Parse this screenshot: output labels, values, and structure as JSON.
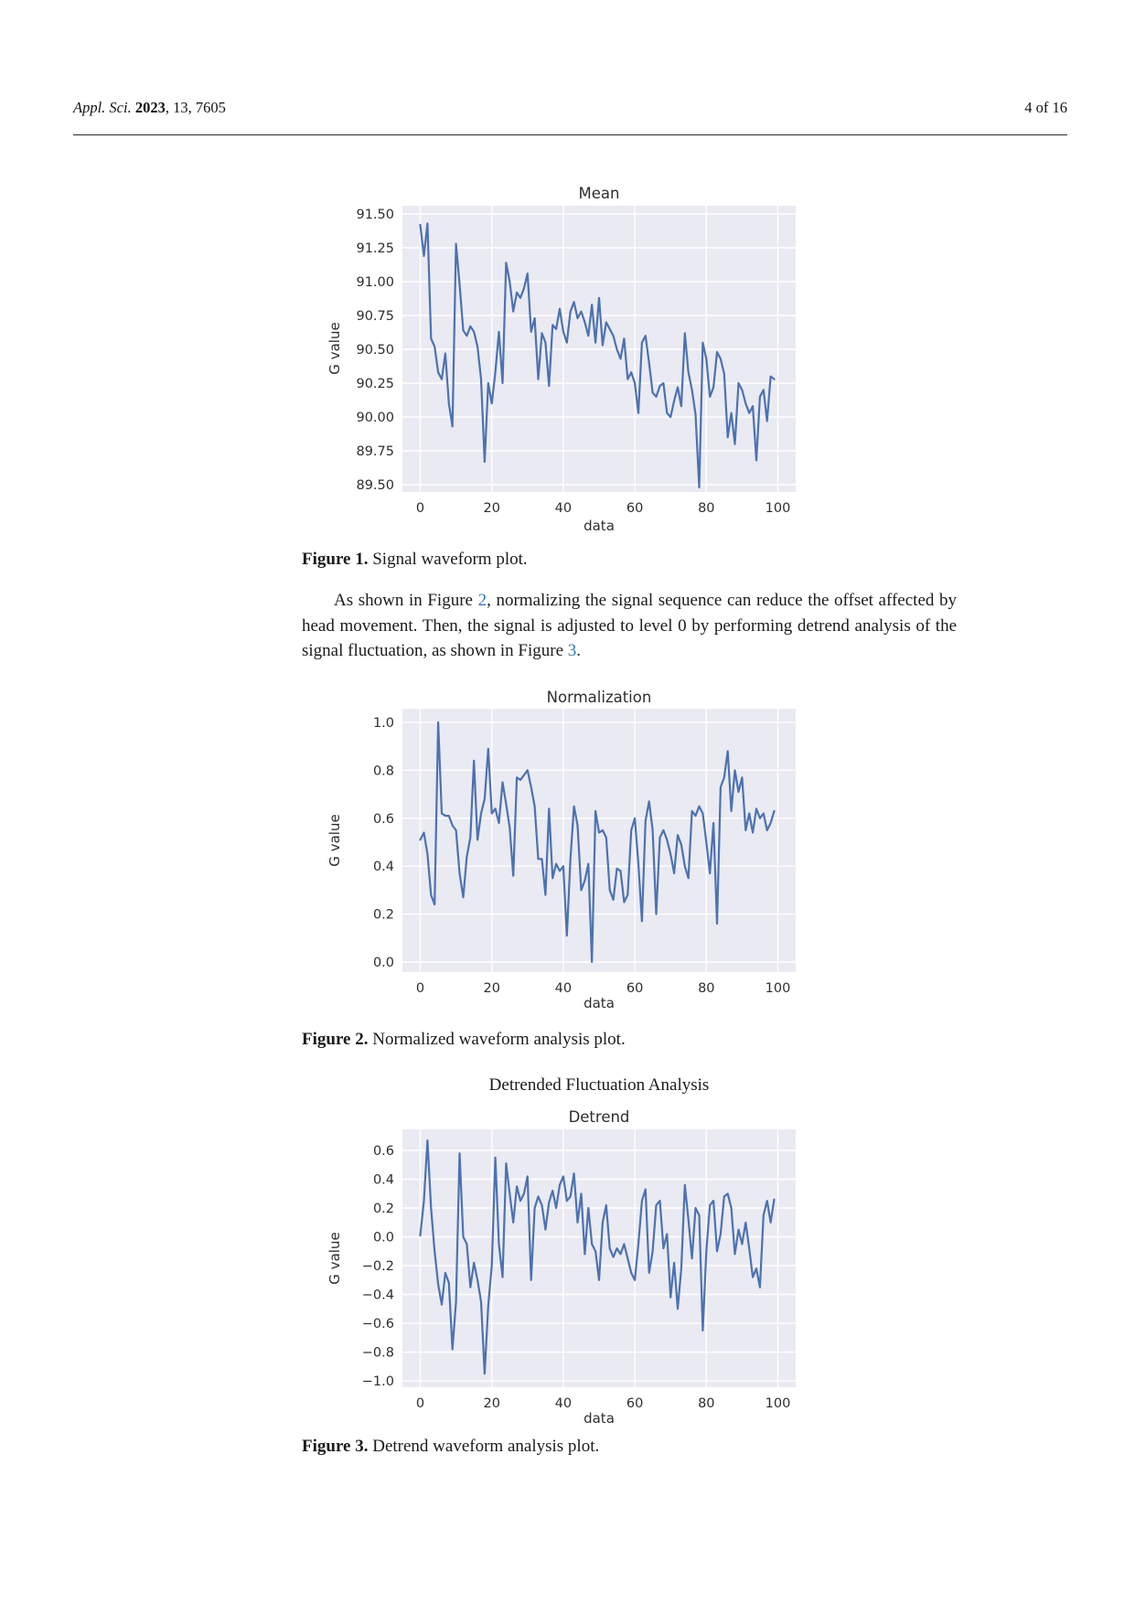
{
  "header": {
    "journal_italic": "Appl. Sci.",
    "volume_bold": "2023",
    "issue_rest": ", 13, 7605",
    "page_indicator": "4 of 16"
  },
  "paragraph": {
    "t1": "As shown in Figure ",
    "link1": "2",
    "t2": ", normalizing the signal sequence can reduce the offset affected by head movement. Then, the signal is adjusted to level 0 by performing detrend analysis of the signal fluctuation, as shown in Figure ",
    "link2": "3",
    "t3": "."
  },
  "figures": [
    {
      "label": "Figure 1.",
      "caption": " Signal waveform plot."
    },
    {
      "label": "Figure 2.",
      "caption": " Normalized waveform analysis plot."
    },
    {
      "label": "Figure 3.",
      "caption": " Detrend waveform analysis plot."
    }
  ],
  "chart_data": [
    {
      "type": "line",
      "title": "Mean",
      "xlabel": "data",
      "ylabel": "G value",
      "legend": null,
      "grid": true,
      "xticks": [
        0,
        20,
        40,
        60,
        80,
        100
      ],
      "ytick_labels": [
        "91.50",
        "91.25",
        "91.00",
        "90.75",
        "90.50",
        "90.25",
        "90.00",
        "89.75",
        "89.50"
      ],
      "xlim": [
        -5,
        105
      ],
      "ylim": [
        89.446,
        91.561
      ],
      "x_start": 0,
      "x_step": 1,
      "values": [
        91.42,
        91.19,
        91.43,
        90.58,
        90.52,
        90.33,
        90.28,
        90.47,
        90.1,
        89.93,
        91.28,
        90.98,
        90.64,
        90.6,
        90.67,
        90.63,
        90.52,
        90.28,
        89.67,
        90.25,
        90.1,
        90.33,
        90.63,
        90.25,
        91.14,
        91.0,
        90.78,
        90.92,
        90.88,
        90.95,
        91.06,
        90.63,
        90.73,
        90.28,
        90.62,
        90.55,
        90.23,
        90.68,
        90.65,
        90.8,
        90.63,
        90.55,
        90.78,
        90.85,
        90.73,
        90.78,
        90.7,
        90.6,
        90.83,
        90.55,
        90.88,
        90.53,
        90.7,
        90.65,
        90.6,
        90.5,
        90.43,
        90.58,
        90.28,
        90.33,
        90.25,
        90.03,
        90.55,
        90.6,
        90.4,
        90.18,
        90.15,
        90.23,
        90.25,
        90.03,
        90.0,
        90.12,
        90.22,
        90.08,
        90.62,
        90.33,
        90.2,
        90.02,
        89.48,
        90.55,
        90.43,
        90.15,
        90.22,
        90.48,
        90.43,
        90.32,
        89.85,
        90.03,
        89.8,
        90.25,
        90.2,
        90.1,
        90.03,
        90.08,
        89.68,
        90.15,
        90.2,
        89.97,
        90.3,
        90.28
      ],
      "colors": {
        "background": "#eaeaf2",
        "gridline": "#ffffff",
        "line": "#4c72b0",
        "tick_text": "#2e2e2e"
      }
    },
    {
      "type": "line",
      "title": "Normalization",
      "xlabel": "data",
      "ylabel": "G value",
      "legend": null,
      "grid": true,
      "xticks": [
        0,
        20,
        40,
        60,
        80,
        100
      ],
      "ytick_labels": [
        "1.0",
        "0.8",
        "0.6",
        "0.4",
        "0.2",
        "0.0"
      ],
      "xlim": [
        -5,
        105
      ],
      "ylim": [
        -0.042,
        1.057
      ],
      "x_start": 0,
      "x_step": 1,
      "values": [
        0.51,
        0.54,
        0.45,
        0.28,
        0.24,
        1.0,
        0.62,
        0.61,
        0.61,
        0.57,
        0.55,
        0.37,
        0.27,
        0.44,
        0.52,
        0.84,
        0.51,
        0.62,
        0.68,
        0.89,
        0.62,
        0.64,
        0.58,
        0.75,
        0.66,
        0.56,
        0.36,
        0.77,
        0.76,
        0.78,
        0.8,
        0.73,
        0.65,
        0.43,
        0.43,
        0.28,
        0.64,
        0.35,
        0.41,
        0.38,
        0.4,
        0.11,
        0.43,
        0.65,
        0.57,
        0.3,
        0.34,
        0.41,
        0.0,
        0.63,
        0.54,
        0.55,
        0.52,
        0.3,
        0.26,
        0.39,
        0.38,
        0.25,
        0.28,
        0.55,
        0.6,
        0.41,
        0.17,
        0.59,
        0.67,
        0.55,
        0.2,
        0.52,
        0.55,
        0.51,
        0.45,
        0.37,
        0.53,
        0.49,
        0.4,
        0.35,
        0.63,
        0.61,
        0.65,
        0.62,
        0.5,
        0.37,
        0.58,
        0.16,
        0.73,
        0.77,
        0.88,
        0.63,
        0.8,
        0.71,
        0.77,
        0.55,
        0.62,
        0.54,
        0.64,
        0.6,
        0.62,
        0.55,
        0.58,
        0.63
      ],
      "colors": {
        "background": "#eaeaf2",
        "gridline": "#ffffff",
        "line": "#4c72b0",
        "tick_text": "#2e2e2e"
      }
    },
    {
      "type": "line",
      "suptitle": "Detrended Fluctuation Analysis",
      "title": "Detrend",
      "xlabel": "data",
      "ylabel": "G value",
      "legend": null,
      "grid": true,
      "xticks": [
        0,
        20,
        40,
        60,
        80,
        100
      ],
      "ytick_labels": [
        "0.6",
        "0.4",
        "0.2",
        "0.0",
        "−0.2",
        "−0.4",
        "−0.6",
        "−0.8",
        "−1.0"
      ],
      "xlim": [
        -5,
        105
      ],
      "ylim": [
        -1.044,
        0.746
      ],
      "x_start": 0,
      "x_step": 1,
      "values": [
        0.01,
        0.25,
        0.67,
        0.2,
        -0.1,
        -0.33,
        -0.47,
        -0.25,
        -0.32,
        -0.78,
        -0.45,
        0.58,
        0.0,
        -0.05,
        -0.35,
        -0.18,
        -0.3,
        -0.45,
        -0.95,
        -0.48,
        -0.2,
        0.55,
        -0.05,
        -0.28,
        0.51,
        0.3,
        0.1,
        0.35,
        0.25,
        0.3,
        0.42,
        -0.3,
        0.2,
        0.28,
        0.22,
        0.05,
        0.24,
        0.32,
        0.2,
        0.36,
        0.42,
        0.25,
        0.28,
        0.44,
        0.1,
        0.3,
        -0.12,
        0.2,
        -0.05,
        -0.1,
        -0.3,
        0.1,
        0.22,
        -0.08,
        -0.14,
        -0.08,
        -0.12,
        -0.05,
        -0.15,
        -0.25,
        -0.3,
        -0.05,
        0.25,
        0.33,
        -0.25,
        -0.1,
        0.22,
        0.25,
        -0.08,
        0.02,
        -0.42,
        -0.18,
        -0.5,
        -0.22,
        0.36,
        0.12,
        -0.15,
        0.2,
        0.15,
        -0.65,
        -0.1,
        0.22,
        0.25,
        -0.1,
        0.02,
        0.28,
        0.3,
        0.2,
        -0.12,
        0.05,
        -0.05,
        0.1,
        -0.08,
        -0.28,
        -0.22,
        -0.35,
        0.15,
        0.25,
        0.1,
        0.26
      ],
      "colors": {
        "background": "#eaeaf2",
        "gridline": "#ffffff",
        "line": "#4c72b0",
        "tick_text": "#2e2e2e"
      }
    }
  ]
}
